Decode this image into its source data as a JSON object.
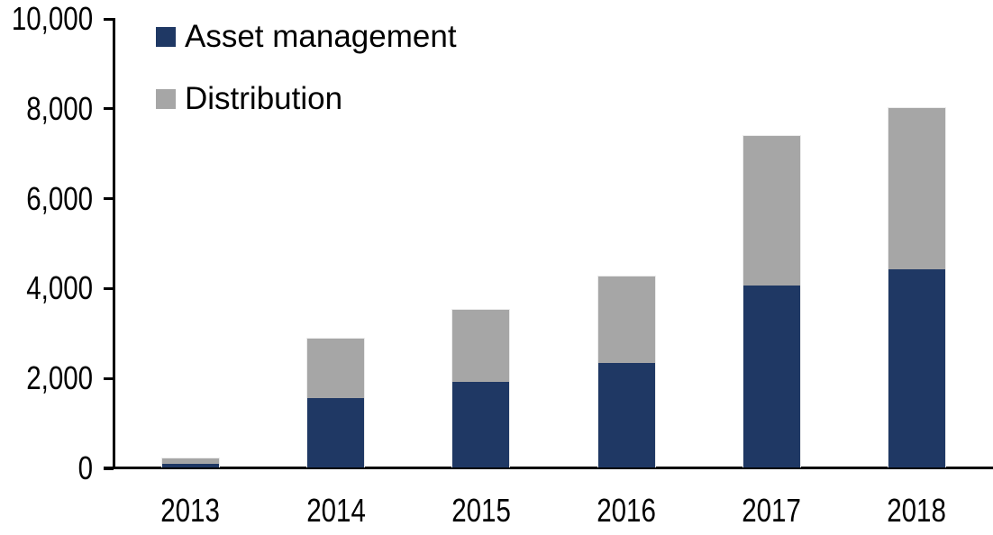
{
  "chart_data": {
    "type": "bar",
    "stacked": true,
    "title": "",
    "xlabel": "",
    "ylabel": "",
    "categories": [
      "2013",
      "2014",
      "2015",
      "2016",
      "2017",
      "2018"
    ],
    "series": [
      {
        "name": "Asset management",
        "color": "#1F3864",
        "values": [
          80,
          1550,
          1900,
          2320,
          4050,
          4410
        ]
      },
      {
        "name": "Distribution",
        "color": "#A6A6A6",
        "values": [
          120,
          1320,
          1600,
          1930,
          3330,
          3590
        ]
      }
    ],
    "ylim": [
      0,
      10000
    ],
    "yticks": [
      0,
      2000,
      4000,
      6000,
      8000,
      10000
    ],
    "ytick_labels": [
      "0",
      "2,000",
      "4,000",
      "6,000",
      "8,000",
      "10,000"
    ],
    "grid": false,
    "legend_position": "top-left-inside",
    "axis_color": "#000000",
    "background_color": "#FFFFFF"
  }
}
